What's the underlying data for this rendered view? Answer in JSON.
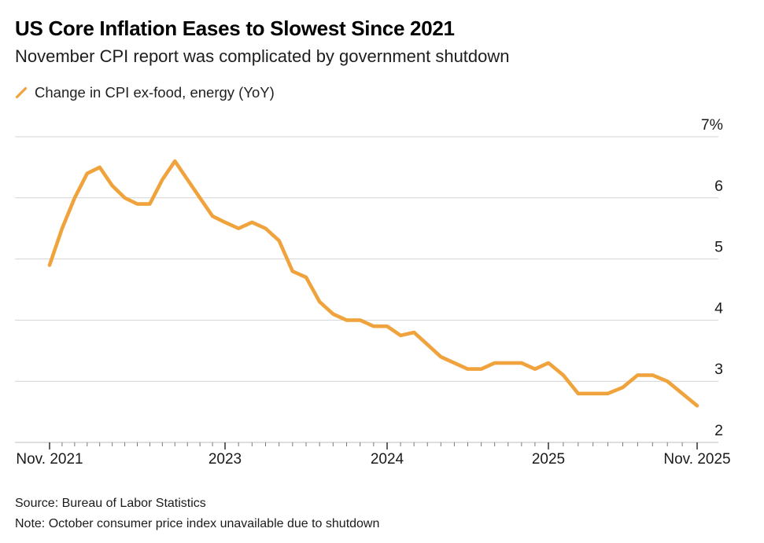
{
  "header": {
    "title": "US Core Inflation Eases to Slowest Since 2021",
    "subtitle": "November CPI report was complicated by government shutdown"
  },
  "legend": {
    "label": "Change in CPI ex-food, energy (YoY)",
    "marker_icon": "orange-slash-line-marker"
  },
  "chart_data": {
    "type": "line",
    "title": "US Core Inflation Eases to Slowest Since 2021",
    "subtitle": "November CPI report was complicated by government shutdown",
    "xlabel": "",
    "ylabel": "Change in CPI ex-food, energy (YoY), %",
    "ylim": [
      2,
      7
    ],
    "grid": "horizontal",
    "legend_position": "top-left",
    "series": [
      {
        "name": "Change in CPI ex-food, energy (YoY)",
        "color": "#F0A33C"
      }
    ],
    "x": [
      "Nov 2021",
      "Dec 2021",
      "Jan 2022",
      "Feb 2022",
      "Mar 2022",
      "Apr 2022",
      "May 2022",
      "Jun 2022",
      "Jul 2022",
      "Aug 2022",
      "Sep 2022",
      "Oct 2022",
      "Nov 2022",
      "Dec 2022",
      "Jan 2023",
      "Feb 2023",
      "Mar 2023",
      "Apr 2023",
      "May 2023",
      "Jun 2023",
      "Jul 2023",
      "Aug 2023",
      "Sep 2023",
      "Oct 2023",
      "Nov 2023",
      "Dec 2023",
      "Jan 2024",
      "Feb 2024",
      "Mar 2024",
      "Apr 2024",
      "May 2024",
      "Jun 2024",
      "Jul 2024",
      "Aug 2024",
      "Sep 2024",
      "Oct 2024",
      "Nov 2024",
      "Dec 2024",
      "Jan 2025",
      "Feb 2025",
      "Mar 2025",
      "Apr 2025",
      "May 2025",
      "Jun 2025",
      "Jul 2025",
      "Aug 2025",
      "Sep 2025",
      "Oct 2025",
      "Nov 2025"
    ],
    "values": [
      4.9,
      5.5,
      6.0,
      6.4,
      6.5,
      6.2,
      6.0,
      5.9,
      5.9,
      6.3,
      6.6,
      6.3,
      6.0,
      5.7,
      5.6,
      5.5,
      5.6,
      5.5,
      5.3,
      4.8,
      4.7,
      4.3,
      4.1,
      4.0,
      4.0,
      3.9,
      3.9,
      3.75,
      3.8,
      3.6,
      3.4,
      3.3,
      3.2,
      3.2,
      3.3,
      3.3,
      3.3,
      3.2,
      3.3,
      3.1,
      2.8,
      2.8,
      2.8,
      2.9,
      3.1,
      3.1,
      3.0,
      null,
      2.6
    ],
    "missing_data": [
      "Oct 2025"
    ],
    "yticks": [
      {
        "value": 7,
        "label": "7%"
      },
      {
        "value": 6,
        "label": "6"
      },
      {
        "value": 5,
        "label": "5"
      },
      {
        "value": 4,
        "label": "4"
      },
      {
        "value": 3,
        "label": "3"
      },
      {
        "value": 2,
        "label": "2"
      }
    ],
    "xticks": [
      {
        "index": 0,
        "label": "Nov. 2021"
      },
      {
        "index": 14,
        "label": "2023"
      },
      {
        "index": 26,
        "label": "2024"
      },
      {
        "index": 38,
        "label": "2025"
      },
      {
        "index": 48,
        "label": "Nov. 2025"
      }
    ]
  },
  "colors": {
    "line": "#F0A33C",
    "grid": "#D4D4D4",
    "axis": "#BDBDBD",
    "tick_major": "#3d3d3d",
    "tick_minor": "#7a7a7a",
    "text": "#1a1a1a"
  },
  "footer": {
    "source": "Source: Bureau of Labor Statistics",
    "note": "Note: October consumer price index unavailable due to shutdown"
  }
}
